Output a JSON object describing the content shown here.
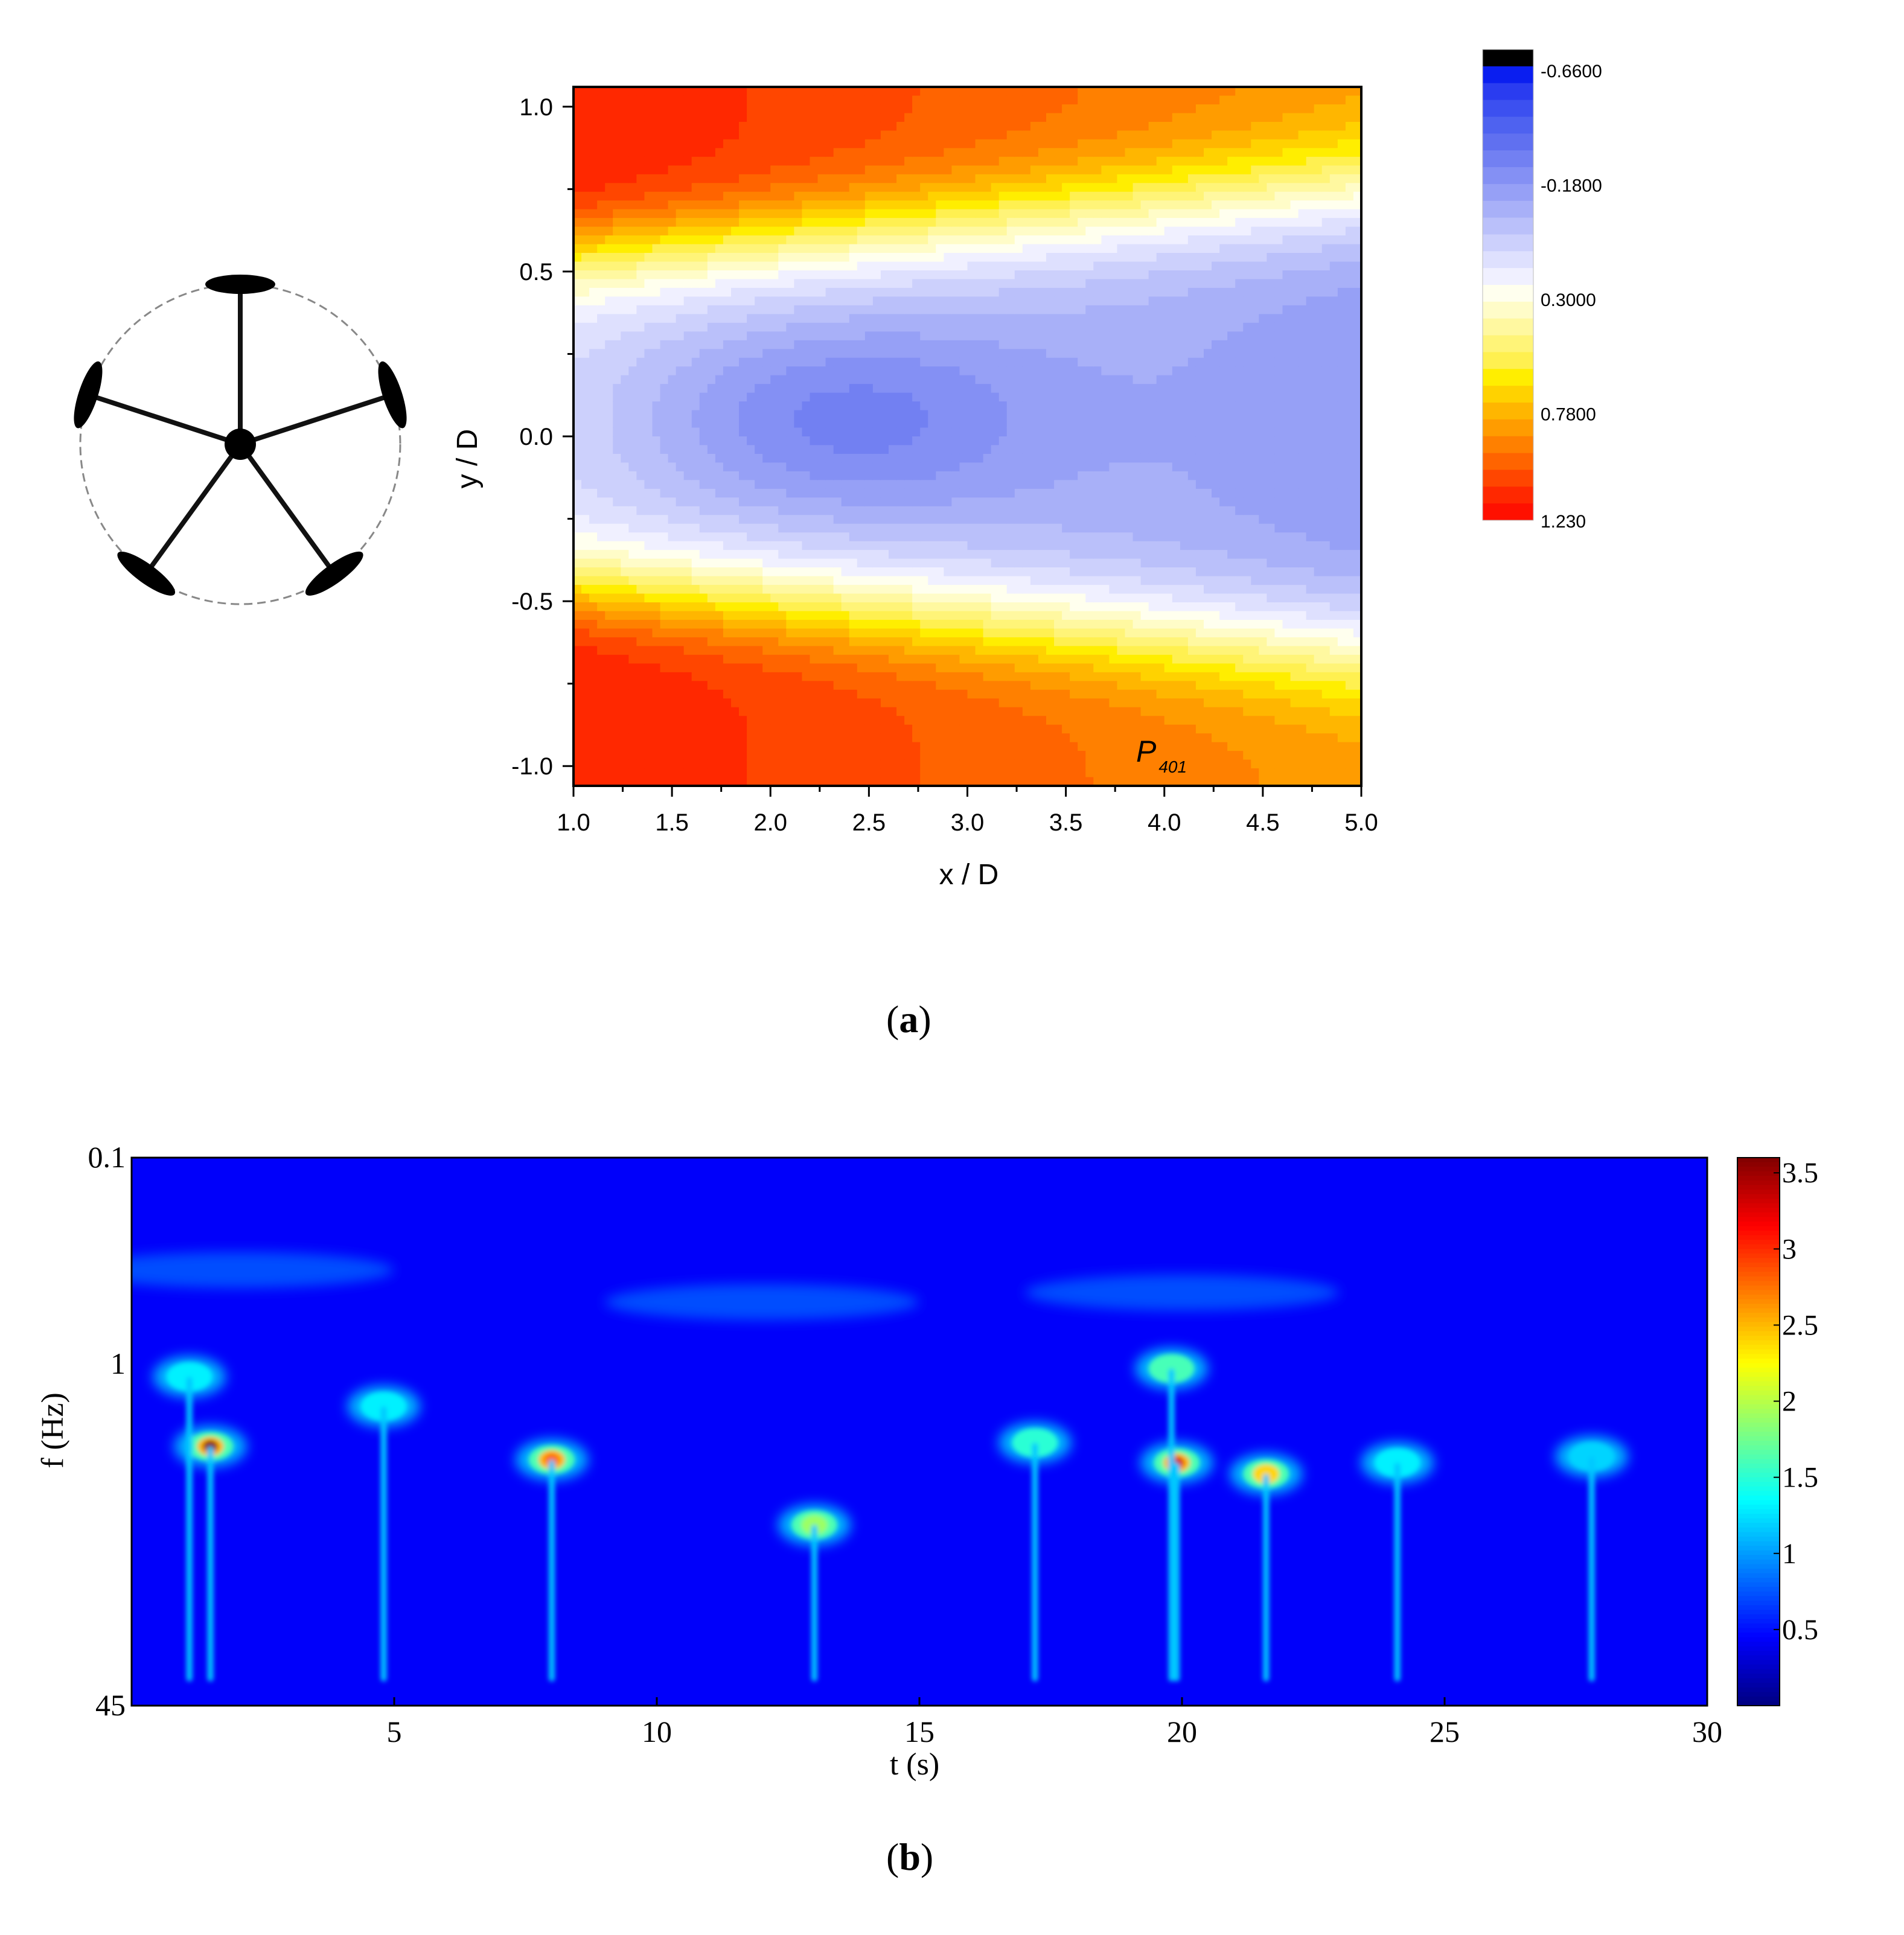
{
  "panels": {
    "a_label": "a",
    "b_label": "b"
  },
  "chart_data": [
    {
      "type": "heatmap",
      "panel": "a",
      "title": "",
      "xlabel": "x / D",
      "ylabel": "y / D",
      "xlim": [
        1.0,
        5.0
      ],
      "ylim": [
        -1.06,
        1.06
      ],
      "x_ticks": [
        1.0,
        1.5,
        2.0,
        2.5,
        3.0,
        3.5,
        4.0,
        4.5,
        5.0
      ],
      "x_tick_labels": [
        "1.0",
        "1.5",
        "2.0",
        "2.5",
        "3.0",
        "3.5",
        "4.0",
        "4.5",
        "5.0"
      ],
      "y_ticks": [
        -1.0,
        -0.5,
        0.0,
        0.5,
        1.0
      ],
      "y_tick_labels": [
        "-1.0",
        "-0.5",
        "0.0",
        "0.5",
        "1.0"
      ],
      "colorbar": {
        "min": -0.66,
        "max": 1.23,
        "tick_values": [
          -0.66,
          -0.18,
          0.3,
          0.78,
          1.23
        ],
        "tick_labels": [
          "-0.6600",
          "-0.1800",
          "0.3000",
          "0.7800",
          "1.230"
        ],
        "colors": [
          "#000000",
          "#0a1ef0",
          "#2a3cf0",
          "#3c50f0",
          "#4e62f0",
          "#6070f0",
          "#7280f2",
          "#8490f4",
          "#96a0f6",
          "#a8b0f8",
          "#bac0fa",
          "#ccd0fc",
          "#dee0fe",
          "#f0f0ff",
          "#ffffee",
          "#fffcc8",
          "#fff8a0",
          "#fff478",
          "#fff050",
          "#ffee00",
          "#ffd200",
          "#ffb600",
          "#ff9c00",
          "#ff8000",
          "#ff6400",
          "#ff4600",
          "#ff2800",
          "#ff1000"
        ]
      },
      "annotation": {
        "text": "P",
        "subscript": "401",
        "x": 3.95,
        "y": -0.95
      },
      "features": {
        "deficit_center": {
          "x": 2.3,
          "y": 0.05,
          "min_value": -0.18
        },
        "upper_shear_layer": {
          "y": 0.65
        },
        "lower_shear_layer": {
          "y": -0.65
        }
      },
      "inset": {
        "type": "rotor-diagram",
        "blade_count": 5
      }
    },
    {
      "type": "heatmap",
      "panel": "b",
      "title": "",
      "xlabel": "t (s)",
      "ylabel": "f (Hz)",
      "xlim": [
        0,
        30
      ],
      "ylim": [
        0.1,
        45
      ],
      "y_scale": "log",
      "y_reversed": true,
      "x_ticks": [
        5,
        10,
        15,
        20,
        25,
        30
      ],
      "x_tick_labels": [
        "5",
        "10",
        "15",
        "20",
        "25",
        "30"
      ],
      "y_ticks": [
        0.1,
        1,
        45
      ],
      "y_tick_labels": [
        "0.1",
        "1",
        "45"
      ],
      "colorbar": {
        "min": 0,
        "max": 3.6,
        "tick_values": [
          0.5,
          1,
          1.5,
          2,
          2.5,
          3,
          3.5
        ],
        "tick_labels": [
          "0.5",
          "1",
          "1.5",
          "2",
          "2.5",
          "3",
          "3.5"
        ],
        "colormap": "jet"
      },
      "hotspots": [
        {
          "t": 1.5,
          "f": 2.5,
          "peak": 3.6
        },
        {
          "t": 8.0,
          "f": 2.9,
          "peak": 2.8
        },
        {
          "t": 19.9,
          "f": 3.0,
          "peak": 3.3
        },
        {
          "t": 21.6,
          "f": 3.4,
          "peak": 2.4
        },
        {
          "t": 19.8,
          "f": 1.05,
          "peak": 1.6
        },
        {
          "t": 1.1,
          "f": 1.15,
          "peak": 1.3
        },
        {
          "t": 4.8,
          "f": 1.6,
          "peak": 1.3
        },
        {
          "t": 13.0,
          "f": 6.0,
          "peak": 1.9
        },
        {
          "t": 17.2,
          "f": 2.4,
          "peak": 1.5
        },
        {
          "t": 24.1,
          "f": 3.0,
          "peak": 1.3
        },
        {
          "t": 27.8,
          "f": 2.8,
          "peak": 1.2
        }
      ]
    }
  ]
}
